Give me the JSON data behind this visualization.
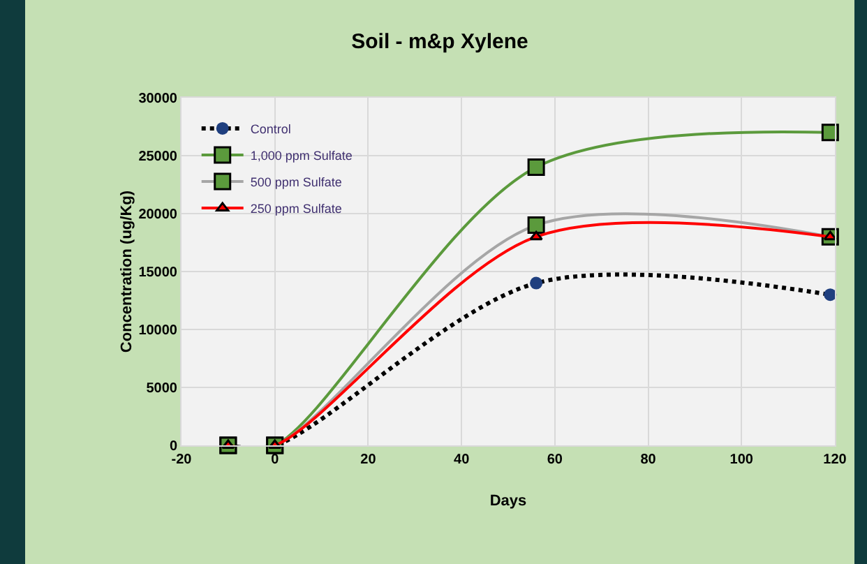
{
  "chart_data": {
    "type": "line",
    "title": "Soil - m&p Xylene",
    "xlabel": "Days",
    "ylabel": "Concentration (ug/Kg)",
    "x": [
      -10,
      0,
      56,
      119
    ],
    "series": [
      {
        "name": "Control",
        "color": "#1f3f7f",
        "values": [
          0,
          0,
          14000,
          13000
        ],
        "marker": "circle",
        "line_style": "dotted"
      },
      {
        "name": "1,000 ppm Sulfate",
        "color": "#5b9a3c",
        "values": [
          0,
          0,
          24000,
          27000
        ],
        "marker": "square",
        "line_style": "solid"
      },
      {
        "name": "500 ppm Sulfate",
        "color": "#a6a6a6",
        "values": [
          0,
          0,
          19000,
          18000
        ],
        "marker": "square",
        "line_style": "solid"
      },
      {
        "name": "250 ppm Sulfate",
        "color": "#ff0000",
        "values": [
          0,
          0,
          18000,
          18000
        ],
        "marker": "triangle",
        "line_style": "solid"
      }
    ],
    "xlim": [
      -20,
      120
    ],
    "xticks": [
      -20,
      0,
      20,
      40,
      60,
      80,
      100,
      120
    ],
    "ylim": [
      0,
      30000
    ],
    "yticks": [
      0,
      5000,
      10000,
      15000,
      20000,
      25000,
      30000
    ],
    "grid": true,
    "legend": "top left"
  }
}
